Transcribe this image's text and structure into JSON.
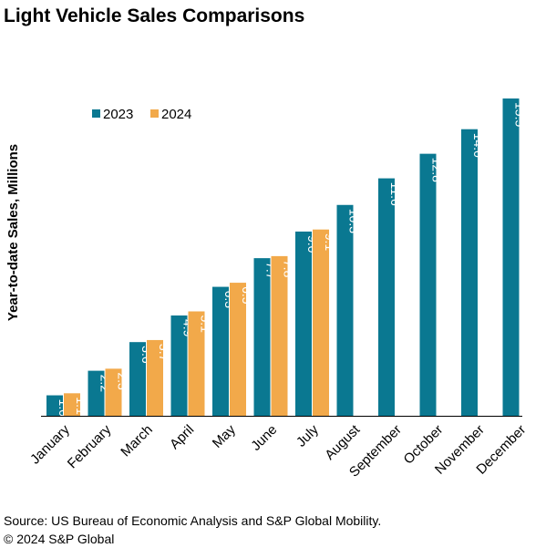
{
  "title": "Light Vehicle Sales Comparisons",
  "source": {
    "line1": "Source: US Bureau of Economic Analysis and S&P Global Mobility.",
    "line2": "© 2024 S&P Global"
  },
  "colors": {
    "2023": "#0a7891",
    "2024": "#f2a94a",
    "axis": "#000000"
  },
  "chart_data": {
    "type": "bar",
    "title": "Light Vehicle Sales Comparisons",
    "ylabel": "Year-to-date Sales, Millions",
    "xlabel": "",
    "ylim": [
      0,
      16
    ],
    "grid": false,
    "legend_position": "top-left",
    "categories": [
      "January",
      "February",
      "March",
      "April",
      "May",
      "June",
      "July",
      "August",
      "September",
      "October",
      "November",
      "December"
    ],
    "series": [
      {
        "name": "2023",
        "values": [
          1.0,
          2.2,
          3.6,
          4.9,
          6.3,
          7.7,
          9.0,
          10.3,
          11.6,
          12.8,
          14.0,
          15.5
        ],
        "labels": [
          "1.0",
          "2.2",
          "3.6",
          "4.9",
          "6.3",
          "7.7",
          "9.0",
          "10.3",
          "11.6",
          "12.8",
          "14.0",
          "15.5"
        ]
      },
      {
        "name": "2024",
        "values": [
          1.1,
          2.3,
          3.7,
          5.1,
          6.5,
          7.8,
          9.1,
          null,
          null,
          null,
          null,
          null
        ],
        "labels": [
          "1.1",
          "2.3",
          "3.7",
          "5.1",
          "6.5",
          "7.8",
          "9.1",
          null,
          null,
          null,
          null,
          null
        ]
      }
    ]
  }
}
